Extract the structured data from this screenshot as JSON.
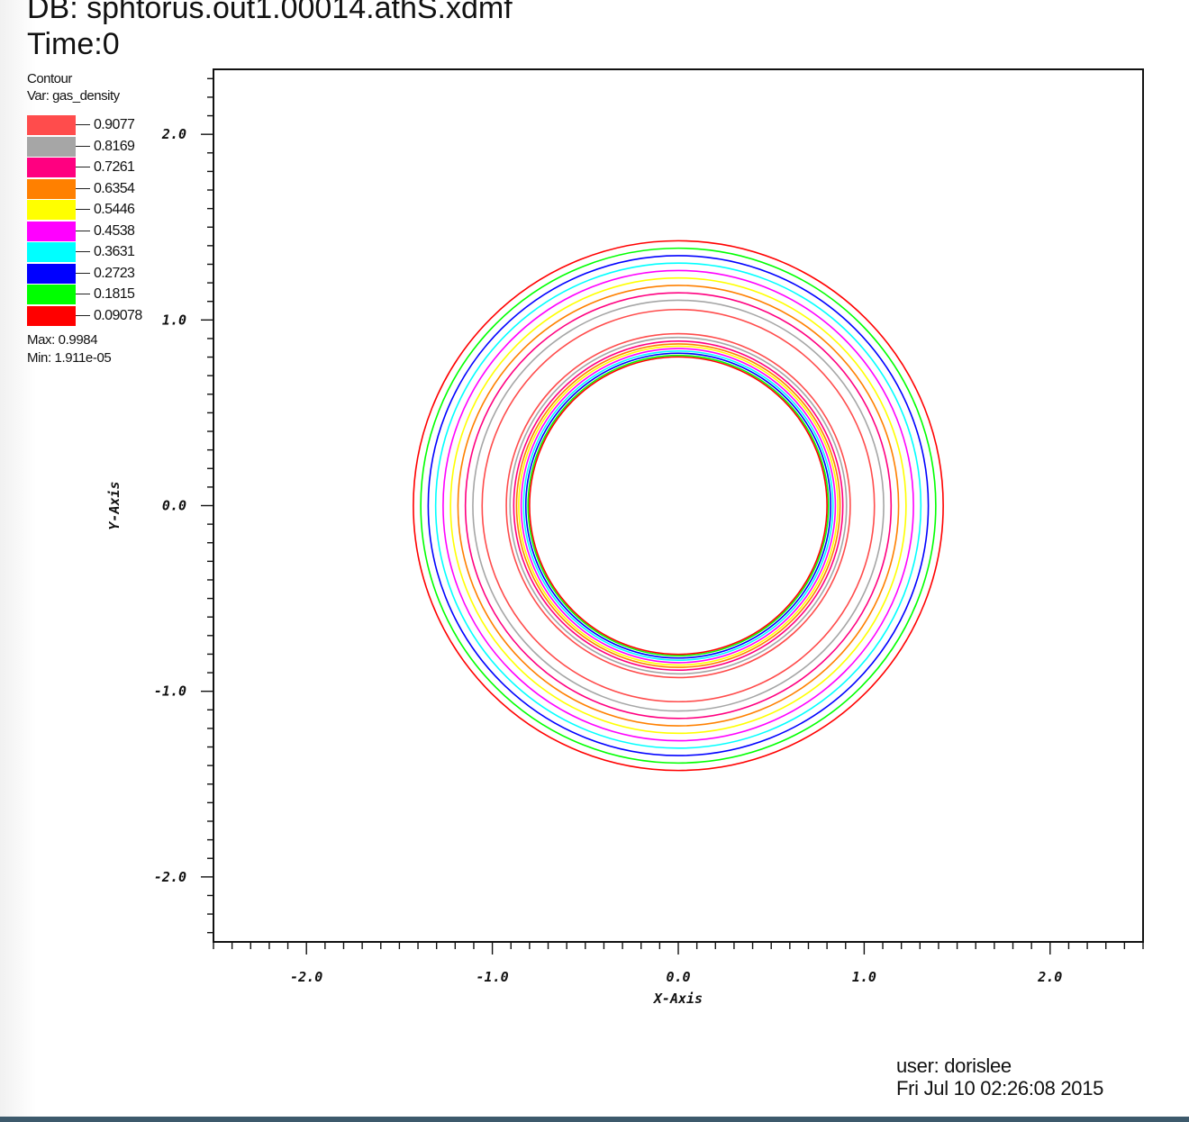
{
  "header": {
    "db": "DB: sphtorus.out1.00014.athS.xdmf",
    "time": "Time:0"
  },
  "legend": {
    "title": "Contour",
    "var": "Var: gas_density",
    "max": "Max:  0.9984",
    "min": "Min:  1.911e-05"
  },
  "footer": {
    "user": "user: dorislee",
    "date": "Fri Jul  10 02:26:08 2015"
  },
  "chart_data": {
    "type": "contour",
    "xlabel": "X-Axis",
    "ylabel": "Y-Axis",
    "xlim": [
      -2.5,
      2.5
    ],
    "ylim": [
      -2.35,
      2.35
    ],
    "xticks": [
      {
        "value": -2.0,
        "label": "-2.0"
      },
      {
        "value": -1.0,
        "label": "-1.0"
      },
      {
        "value": 0.0,
        "label": "0.0"
      },
      {
        "value": 1.0,
        "label": "1.0"
      },
      {
        "value": 2.0,
        "label": "2.0"
      }
    ],
    "yticks": [
      {
        "value": 2.0,
        "label": "2.0"
      },
      {
        "value": 1.0,
        "label": "1.0"
      },
      {
        "value": 0.0,
        "label": "0.0"
      },
      {
        "value": -1.0,
        "label": "-1.0"
      },
      {
        "value": -2.0,
        "label": "-2.0"
      }
    ],
    "minor_tick_step": 0.1,
    "levels": [
      {
        "label": "0.9077",
        "color": "#ff4c4c"
      },
      {
        "label": "0.8169",
        "color": "#a6a6a6"
      },
      {
        "label": "0.7261",
        "color": "#ff0080"
      },
      {
        "label": "0.6354",
        "color": "#ff8000"
      },
      {
        "label": "0.5446",
        "color": "#ffff00"
      },
      {
        "label": "0.4538",
        "color": "#ff00ff"
      },
      {
        "label": "0.3631",
        "color": "#00ffff"
      },
      {
        "label": "0.2723",
        "color": "#0000ff"
      },
      {
        "label": "0.1815",
        "color": "#00ff00"
      },
      {
        "label": "0.09078",
        "color": "#ff0000"
      }
    ],
    "contours": [
      {
        "color": "#ff0000",
        "r": 1.425
      },
      {
        "color": "#00ff00",
        "r": 1.385
      },
      {
        "color": "#0000ff",
        "r": 1.345
      },
      {
        "color": "#00ffff",
        "r": 1.305
      },
      {
        "color": "#ff00ff",
        "r": 1.265
      },
      {
        "color": "#ffff00",
        "r": 1.225
      },
      {
        "color": "#ff8000",
        "r": 1.185
      },
      {
        "color": "#ff0080",
        "r": 1.145
      },
      {
        "color": "#a6a6a6",
        "r": 1.105
      },
      {
        "color": "#ff4c4c",
        "r": 1.055
      },
      {
        "color": "#ff4c4c",
        "r": 0.925
      },
      {
        "color": "#a6a6a6",
        "r": 0.905
      },
      {
        "color": "#ff0080",
        "r": 0.885
      },
      {
        "color": "#ff8000",
        "r": 0.87
      },
      {
        "color": "#ffff00",
        "r": 0.858
      },
      {
        "color": "#ff00ff",
        "r": 0.845
      },
      {
        "color": "#00ffff",
        "r": 0.832
      },
      {
        "color": "#0000ff",
        "r": 0.82
      },
      {
        "color": "#00ff00",
        "r": 0.808
      },
      {
        "color": "#ff0000",
        "r": 0.8
      }
    ]
  }
}
